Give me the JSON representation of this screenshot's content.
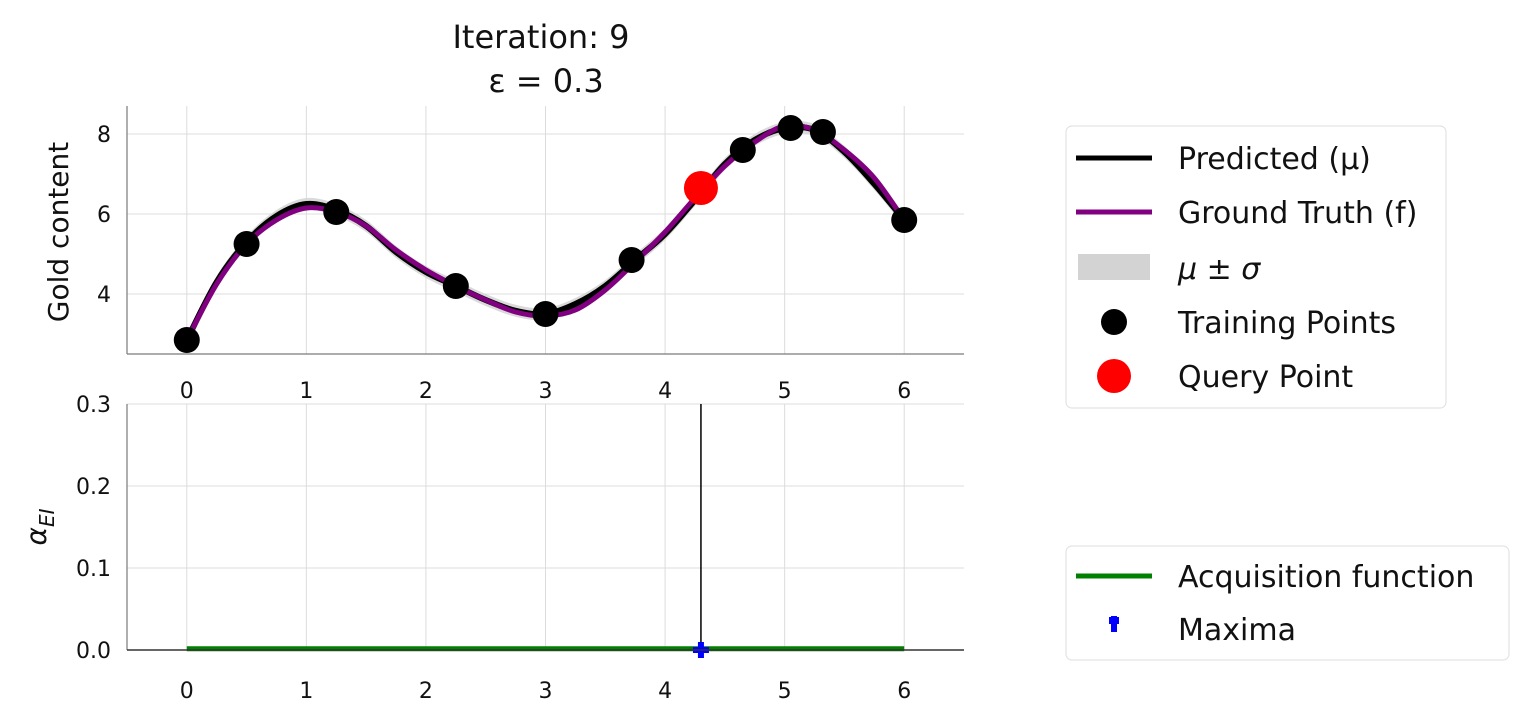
{
  "chart_data": [
    {
      "type": "line",
      "title_line1": "Iteration: 9",
      "title_line2": "ε = 0.3",
      "xlabel": "",
      "ylabel": "Gold content",
      "xlim": [
        -0.5,
        6.5
      ],
      "ylim": [
        2.5,
        8.7
      ],
      "xticks": [
        "0",
        "1",
        "2",
        "3",
        "4",
        "5",
        "6"
      ],
      "yticks": [
        "4",
        "6",
        "8"
      ],
      "grid": true,
      "x": [
        0,
        0.25,
        0.5,
        0.75,
        1.0,
        1.25,
        1.5,
        1.75,
        2.0,
        2.25,
        2.5,
        2.75,
        3.0,
        3.25,
        3.5,
        3.75,
        4.0,
        4.25,
        4.5,
        4.75,
        5.0,
        5.25,
        5.5,
        5.75,
        6.0
      ],
      "series": [
        {
          "name": "Predicted (μ)",
          "color": "#000000",
          "values": [
            2.85,
            4.3,
            5.3,
            5.95,
            6.25,
            6.1,
            5.7,
            5.05,
            4.55,
            4.2,
            3.85,
            3.58,
            3.5,
            3.75,
            4.2,
            4.85,
            5.5,
            6.35,
            7.25,
            7.85,
            8.15,
            8.1,
            7.55,
            6.75,
            5.85
          ]
        },
        {
          "name": "Ground Truth (f)",
          "color": "#800080",
          "values": [
            2.85,
            4.25,
            5.25,
            5.85,
            6.15,
            6.05,
            5.7,
            5.1,
            4.6,
            4.2,
            3.85,
            3.55,
            3.45,
            3.6,
            4.1,
            4.8,
            5.55,
            6.4,
            7.2,
            7.8,
            8.2,
            8.1,
            7.6,
            6.9,
            5.85
          ]
        }
      ],
      "band": {
        "name": "μ ± σ",
        "color": "#d3d3d3",
        "sigma": 0.15
      },
      "training_points": {
        "name": "Training Points",
        "x": [
          0,
          0.5,
          1.25,
          2.25,
          3.0,
          3.72,
          4.65,
          5.05,
          5.32,
          6.0
        ],
        "y": [
          2.85,
          5.25,
          6.05,
          4.2,
          3.5,
          4.85,
          7.6,
          8.15,
          8.05,
          5.85
        ]
      },
      "query_point": {
        "name": "Query Point",
        "x": 4.3,
        "y": 6.65,
        "color": "#ff0000"
      },
      "legend": "right"
    },
    {
      "type": "line",
      "ylabel": "α",
      "ylabel_sub": "EI",
      "xlim": [
        -0.5,
        6.5
      ],
      "ylim": [
        0.0,
        0.3
      ],
      "xticks": [
        "0",
        "1",
        "2",
        "3",
        "4",
        "5",
        "6"
      ],
      "yticks": [
        "0.0",
        "0.1",
        "0.2",
        "0.3"
      ],
      "grid": true,
      "series": [
        {
          "name": "Acquisition function",
          "color": "#008000",
          "x": [
            0,
            6
          ],
          "values": [
            0.0015,
            0.0015
          ]
        }
      ],
      "maxima": {
        "name": "Maxima",
        "x": 4.3,
        "y": 0.0,
        "color": "#0000ff"
      },
      "vline_x": 4.3,
      "legend": "right"
    }
  ]
}
